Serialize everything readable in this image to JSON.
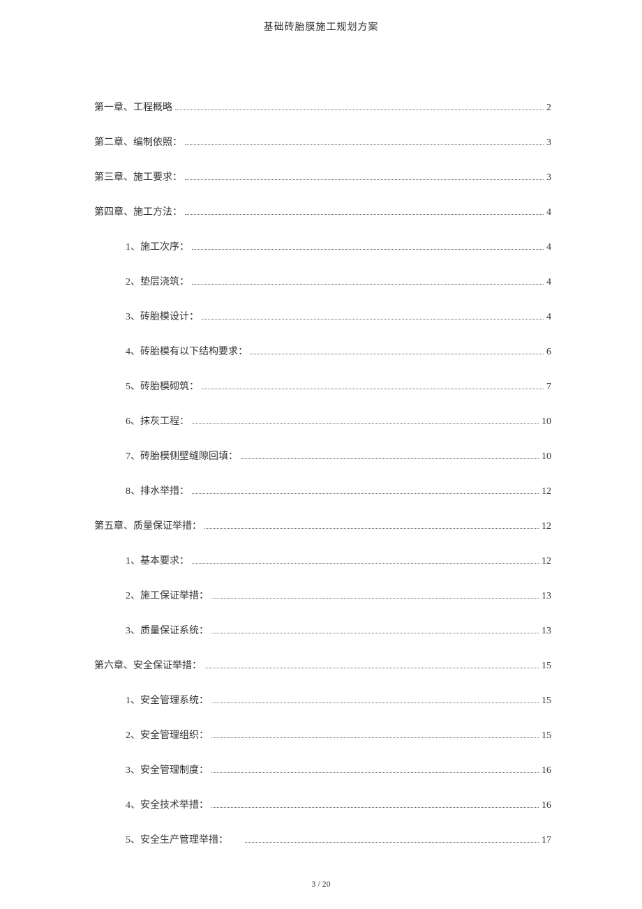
{
  "doc_title": "基础砖胎膜施工规划方案",
  "page_footer": "3 / 20",
  "text_color": "#333333",
  "background_color": "#ffffff",
  "dot_color": "#666666",
  "toc": [
    {
      "label": "第一章、工程概略",
      "page": "2",
      "level": 1,
      "dotStyle": "dense"
    },
    {
      "label": "第二章、编制依照：",
      "page": "3",
      "level": 1,
      "dotStyle": "dense"
    },
    {
      "label": "第三章、施工要求：",
      "page": "3",
      "level": 1,
      "dotStyle": "dense"
    },
    {
      "label": "第四章、施工方法：",
      "page": "4",
      "level": 1,
      "dotStyle": "dense"
    },
    {
      "label": "1、施工次序：",
      "page": "4",
      "level": 2,
      "dotStyle": "dense"
    },
    {
      "label": "2、垫层浇筑：",
      "page": "4",
      "level": 2,
      "dotStyle": "dense"
    },
    {
      "label": "3、砖胎模设计：",
      "page": "4",
      "level": 2,
      "dotStyle": "dense"
    },
    {
      "label": "4、砖胎模有以下结构要求：",
      "page": "6",
      "level": 2,
      "dotStyle": "dense"
    },
    {
      "label": "5、砖胎模砌筑：",
      "page": "7",
      "level": 2,
      "dotStyle": "dense"
    },
    {
      "label": "6、抹灰工程：",
      "page": "10",
      "level": 2,
      "dotStyle": "dense"
    },
    {
      "label": "7、砖胎模侧壁缝隙回填：",
      "page": "10",
      "level": 2,
      "dotStyle": "dense"
    },
    {
      "label": "8、排水举措：",
      "page": "12",
      "level": 2,
      "dotStyle": "dense"
    },
    {
      "label": "第五章、质量保证举措：",
      "page": "12",
      "level": 1,
      "dotStyle": "dense"
    },
    {
      "label": "1、基本要求：",
      "page": "12",
      "level": 2,
      "dotStyle": "dense"
    },
    {
      "label": "2、施工保证举措：",
      "page": "13",
      "level": 2,
      "dotStyle": "dense"
    },
    {
      "label": "3、质量保证系统：",
      "page": "13",
      "level": 2,
      "dotStyle": "dense"
    },
    {
      "label": "第六章、安全保证举措：",
      "page": "15",
      "level": 1,
      "dotStyle": "dense"
    },
    {
      "label": "1、安全管理系统：",
      "page": "15",
      "level": 2,
      "dotStyle": "dense"
    },
    {
      "label": "2、安全管理组织：",
      "page": "15",
      "level": 2,
      "dotStyle": "dense"
    },
    {
      "label": "3、安全管理制度：",
      "page": "16",
      "level": 2,
      "dotStyle": "dense"
    },
    {
      "label": "4、安全技术举措：",
      "page": "16",
      "level": 2,
      "dotStyle": "dense"
    },
    {
      "label": "5、安全生产管理举措：",
      "page": " 17",
      "level": 2,
      "dotStyle": "sparse"
    }
  ]
}
